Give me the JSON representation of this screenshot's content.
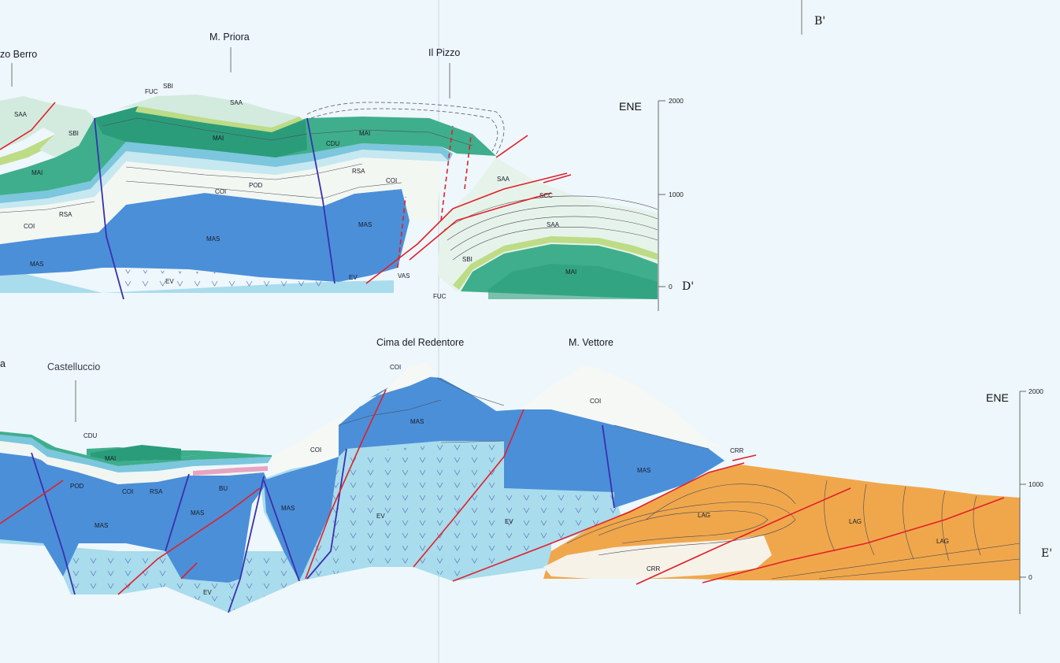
{
  "section_top": {
    "peaks": [
      "zo Berro",
      "M. Priora",
      "Il Pizzo"
    ],
    "orientation": "ENE",
    "section_label": "D'",
    "scale_ticks": [
      "2000",
      "1000",
      "0"
    ],
    "units": {
      "saa1": "SAA",
      "sbi1": "SBI",
      "mai1": "MAI",
      "rsa1": "RSA",
      "coi1": "COI",
      "mas1": "MAS",
      "fuc": "FUC",
      "sbi2": "SBI",
      "saa2": "SAA",
      "mai2": "MAI",
      "pod": "POD",
      "coi2": "COI",
      "mas2": "MAS",
      "ev1": "EV",
      "cdu": "CDU",
      "mai3": "MAI",
      "rsa2": "RSA",
      "coi3": "COI",
      "mas3": "MAS",
      "ev2": "EV",
      "vas": "VAS",
      "saa3": "SAA",
      "scc": "SCC",
      "saa4": "SAA",
      "sbi3": "SBI",
      "mai4": "MAI",
      "fuc2": "FUC"
    }
  },
  "section_bottom": {
    "peaks": [
      "a",
      "Castelluccio",
      "Cima del Redentore",
      "M. Vettore"
    ],
    "orientation": "ENE",
    "section_label": "E'",
    "scale_ticks": [
      "2000",
      "1000",
      "0"
    ],
    "units": {
      "cdu": "CDU",
      "mai": "MAI",
      "pod": "POD",
      "coi1": "COI",
      "rsa": "RSA",
      "bu": "BU",
      "mas1": "MAS",
      "mas2": "MAS",
      "mas3": "MAS",
      "ev1": "EV",
      "coi2": "COI",
      "coi3": "COI",
      "mas4": "MAS",
      "ev2": "EV",
      "ev3": "EV",
      "coi4": "COI",
      "mas5": "MAS",
      "crr1": "CRR",
      "lag1": "LAG",
      "lag2": "LAG",
      "lag3": "LAG",
      "crr2": "CRR"
    }
  },
  "top_corner_label": "B'",
  "colors": {
    "mas": "#4b8fd8",
    "ev": "#a9dcec",
    "coi": "#f4f7f3",
    "rsa": "#e9f1ec",
    "blue_band": "#7cc6de",
    "mai": "#3fae8c",
    "mai_dark": "#2b9c7a",
    "sbi": "#bedb86",
    "saa": "#cfe9df",
    "lag": "#f0a74b",
    "fault_thrust": "#e0202a",
    "fault_normal": "#3b2fb0"
  }
}
